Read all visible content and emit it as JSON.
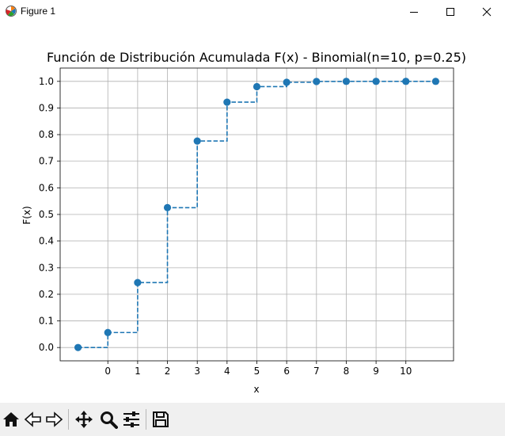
{
  "window": {
    "title": "Figure 1"
  },
  "toolbar": {
    "tools": [
      {
        "name": "home-icon"
      },
      {
        "name": "back-icon"
      },
      {
        "name": "forward-icon"
      },
      {
        "name": "pan-icon"
      },
      {
        "name": "zoom-icon"
      },
      {
        "name": "configure-subplots-icon"
      },
      {
        "name": "save-icon"
      }
    ]
  },
  "colors": {
    "series": "#1f77b4",
    "grid": "#b0b0b0",
    "toolbar_bg": "#f0f0f0"
  },
  "chart_data": {
    "type": "line",
    "step": "post",
    "linestyle": "dashed",
    "marker": "circle",
    "title": "Función de Distribución Acumulada F(x) - Binomial(n=10, p=0.25)",
    "xlabel": "x",
    "ylabel": "F(x)",
    "x": [
      -1,
      0,
      1,
      2,
      3,
      4,
      5,
      6,
      7,
      8,
      9,
      10,
      11
    ],
    "y": [
      0.0,
      0.0563,
      0.244,
      0.5256,
      0.7759,
      0.9219,
      0.9803,
      0.9965,
      0.9996,
      1.0,
      1.0,
      1.0,
      1.0
    ],
    "xticks": [
      "0",
      "1",
      "2",
      "3",
      "4",
      "5",
      "6",
      "7",
      "8",
      "9",
      "10"
    ],
    "yticks": [
      "0.0",
      "0.1",
      "0.2",
      "0.3",
      "0.4",
      "0.5",
      "0.6",
      "0.7",
      "0.8",
      "0.9",
      "1.0"
    ],
    "xlim": [
      -1.6,
      11.6
    ],
    "ylim": [
      -0.05,
      1.05
    ],
    "grid": true
  }
}
